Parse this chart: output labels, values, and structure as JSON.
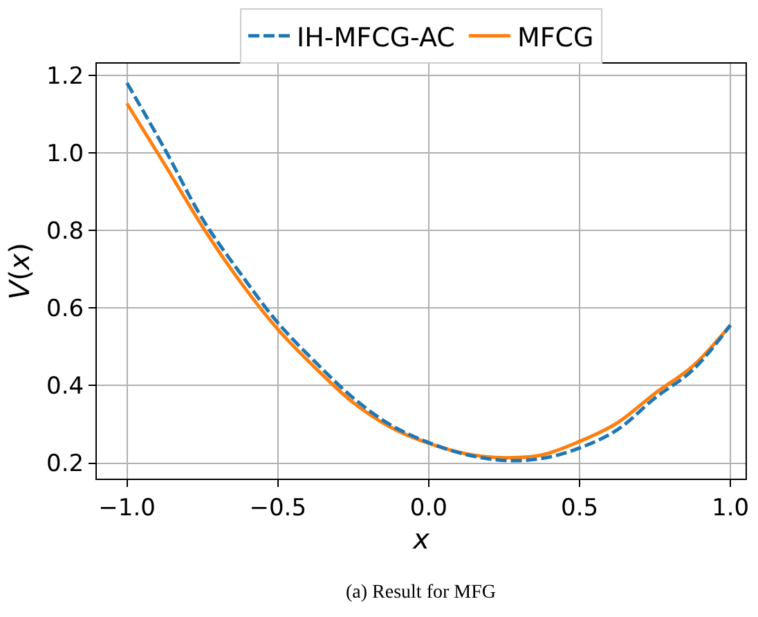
{
  "chart_data": {
    "type": "line",
    "xlabel": "x",
    "ylabel": "V(x)",
    "x": [
      -1,
      -0.875,
      -0.75,
      -0.625,
      -0.5,
      -0.375,
      -0.25,
      -0.125,
      0,
      0.125,
      0.25,
      0.375,
      0.5,
      0.625,
      0.75,
      0.875,
      1
    ],
    "series": [
      {
        "name": "IH-MFCG-AC",
        "color": "#1f77b4",
        "line_style": "dashed",
        "values": [
          1.18,
          1.01,
          0.83,
          0.69,
          0.562,
          0.46,
          0.368,
          0.298,
          0.253,
          0.222,
          0.207,
          0.212,
          0.239,
          0.286,
          0.368,
          0.44,
          0.556
        ]
      },
      {
        "name": "MFCG",
        "color": "#ff7f0e",
        "line_style": "solid",
        "values": [
          1.127,
          0.97,
          0.81,
          0.668,
          0.545,
          0.445,
          0.356,
          0.292,
          0.251,
          0.224,
          0.214,
          0.221,
          0.256,
          0.304,
          0.38,
          0.45,
          0.556
        ]
      }
    ],
    "xlim": [
      -1.1,
      1.05
    ],
    "ylim": [
      0.16,
      1.23
    ],
    "xticks": [
      {
        "value": -1,
        "label": "−1.0"
      },
      {
        "value": -0.5,
        "label": "−0.5"
      },
      {
        "value": 0,
        "label": "0.0"
      },
      {
        "value": 0.5,
        "label": "0.5"
      },
      {
        "value": 1,
        "label": "1.0"
      }
    ],
    "yticks": [
      {
        "value": 0.2,
        "label": "0.2"
      },
      {
        "value": 0.4,
        "label": "0.4"
      },
      {
        "value": 0.6,
        "label": "0.6"
      },
      {
        "value": 0.8,
        "label": "0.8"
      },
      {
        "value": 1,
        "label": "1.0"
      },
      {
        "value": 1.2,
        "label": "1.2"
      }
    ],
    "grid": true,
    "legend": "top",
    "annotations": [
      "(a) Result for MFG"
    ]
  }
}
